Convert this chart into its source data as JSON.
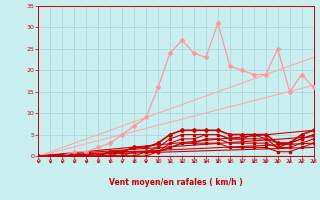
{
  "title": "Vent moyen/en rafales ( km/h )",
  "bg_color": "#c8eef0",
  "grid_color": "#a0ccd0",
  "line_color_dark": "#cc0000",
  "line_color_light": "#ff9999",
  "x_min": 0,
  "x_max": 23,
  "y_min": 0,
  "y_max": 35,
  "x_ticks": [
    0,
    1,
    2,
    3,
    4,
    5,
    6,
    7,
    8,
    9,
    10,
    11,
    12,
    13,
    14,
    15,
    16,
    17,
    18,
    19,
    20,
    21,
    22,
    23
  ],
  "y_ticks": [
    0,
    5,
    10,
    15,
    20,
    25,
    30,
    35
  ],
  "straight_lines": [
    {
      "x": [
        0,
        23
      ],
      "y": [
        0,
        16.5
      ],
      "color": "#ffaaaa",
      "lw": 0.8
    },
    {
      "x": [
        0,
        23
      ],
      "y": [
        0,
        23.0
      ],
      "color": "#ffaaaa",
      "lw": 0.8
    },
    {
      "x": [
        0,
        23
      ],
      "y": [
        0,
        6.0
      ],
      "color": "#cc0000",
      "lw": 0.8
    },
    {
      "x": [
        0,
        23
      ],
      "y": [
        0,
        4.5
      ],
      "color": "#cc0000",
      "lw": 0.8
    },
    {
      "x": [
        0,
        23
      ],
      "y": [
        0,
        3.0
      ],
      "color": "#cc0000",
      "lw": 0.8
    },
    {
      "x": [
        0,
        23
      ],
      "y": [
        0,
        2.0
      ],
      "color": "#cc0000",
      "lw": 0.8
    }
  ],
  "line_light_jagged": {
    "x": [
      0,
      1,
      2,
      3,
      4,
      5,
      6,
      7,
      8,
      9,
      10,
      11,
      12,
      13,
      14,
      15,
      16,
      17,
      18,
      19,
      20,
      21,
      22,
      23
    ],
    "y": [
      0,
      0,
      0,
      1,
      1,
      2,
      3,
      5,
      7,
      9,
      16,
      24,
      27,
      24,
      23,
      31,
      21,
      20,
      19,
      19,
      25,
      15,
      19,
      16
    ],
    "color": "#ff9999",
    "lw": 0.9,
    "marker": "D",
    "ms": 2.0
  },
  "line_dark_main": {
    "x": [
      0,
      1,
      2,
      3,
      4,
      5,
      6,
      7,
      8,
      9,
      10,
      11,
      12,
      13,
      14,
      15,
      16,
      17,
      18,
      19,
      20,
      21,
      22,
      23
    ],
    "y": [
      0,
      0,
      0,
      0,
      0,
      0,
      1,
      1,
      2,
      2,
      3,
      5,
      6,
      6,
      6,
      6,
      5,
      5,
      5,
      5,
      3,
      3,
      5,
      6
    ],
    "color": "#cc0000",
    "lw": 1.2,
    "marker": "D",
    "ms": 2.0
  },
  "line_dark2": {
    "x": [
      0,
      1,
      2,
      3,
      4,
      5,
      6,
      7,
      8,
      9,
      10,
      11,
      12,
      13,
      14,
      15,
      16,
      17,
      18,
      19,
      20,
      21,
      22,
      23
    ],
    "y": [
      0,
      0,
      0,
      0,
      0,
      0,
      0,
      1,
      1,
      1,
      2,
      4,
      5,
      5,
      5,
      5,
      4,
      4,
      5,
      4,
      2,
      3,
      4,
      5
    ],
    "color": "#cc0000",
    "lw": 0.8,
    "marker": "s",
    "ms": 1.5
  },
  "line_dark3": {
    "x": [
      0,
      1,
      2,
      3,
      4,
      5,
      6,
      7,
      8,
      9,
      10,
      11,
      12,
      13,
      14,
      15,
      16,
      17,
      18,
      19,
      20,
      21,
      22,
      23
    ],
    "y": [
      0,
      0,
      0,
      0,
      0,
      0,
      0,
      0,
      1,
      1,
      1,
      3,
      4,
      4,
      5,
      5,
      4,
      4,
      4,
      4,
      3,
      3,
      4,
      5
    ],
    "color": "#cc0000",
    "lw": 0.8,
    "marker": "s",
    "ms": 1.5
  },
  "line_dark4": {
    "x": [
      0,
      1,
      2,
      3,
      4,
      5,
      6,
      7,
      8,
      9,
      10,
      11,
      12,
      13,
      14,
      15,
      16,
      17,
      18,
      19,
      20,
      21,
      22,
      23
    ],
    "y": [
      0,
      0,
      0,
      0,
      0,
      0,
      0,
      0,
      0,
      1,
      1,
      2,
      3,
      3,
      4,
      4,
      3,
      3,
      3,
      3,
      2,
      2,
      3,
      4
    ],
    "color": "#cc0000",
    "lw": 0.8,
    "marker": "s",
    "ms": 1.5
  },
  "line_dark5": {
    "x": [
      0,
      1,
      2,
      3,
      4,
      5,
      6,
      7,
      8,
      9,
      10,
      11,
      12,
      13,
      14,
      15,
      16,
      17,
      18,
      19,
      20,
      21,
      22,
      23
    ],
    "y": [
      0,
      0,
      0,
      0,
      0,
      0,
      0,
      0,
      0,
      0,
      1,
      2,
      3,
      3,
      3,
      3,
      2,
      2,
      2,
      2,
      1,
      1,
      2,
      3
    ],
    "color": "#cc0000",
    "lw": 0.8,
    "marker": "s",
    "ms": 1.5
  }
}
